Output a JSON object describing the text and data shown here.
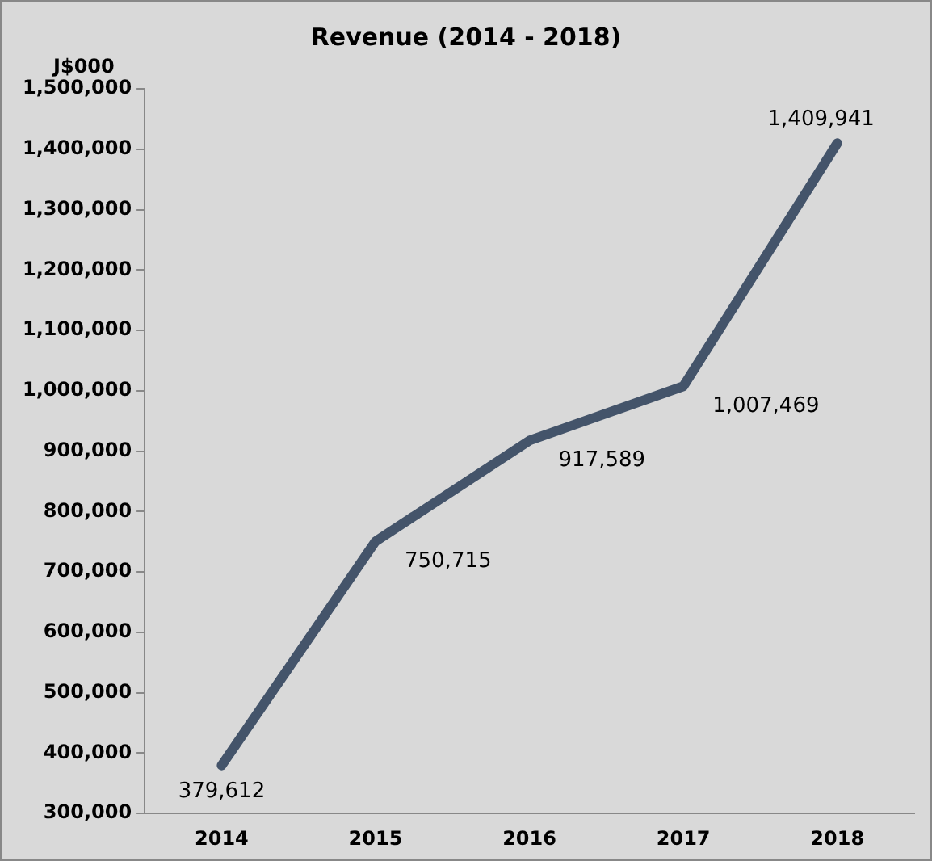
{
  "chart_data": {
    "type": "line",
    "title": "Revenue (2014 - 2018)",
    "ylabel": "J$000",
    "categories": [
      "2014",
      "2015",
      "2016",
      "2017",
      "2018"
    ],
    "series": [
      {
        "color": "#44546a",
        "values": [
          379612,
          750715,
          917589,
          1007469,
          1409941
        ],
        "value_labels": [
          "379,612",
          "750,715",
          "917,589",
          "1,007,469",
          "1,409,941"
        ]
      }
    ],
    "ylim": [
      300000,
      1500000
    ],
    "yticks": [
      {
        "value": 300000,
        "label": "300,000"
      },
      {
        "value": 400000,
        "label": "400,000"
      },
      {
        "value": 500000,
        "label": "500,000"
      },
      {
        "value": 600000,
        "label": "600,000"
      },
      {
        "value": 700000,
        "label": "700,000"
      },
      {
        "value": 800000,
        "label": "800,000"
      },
      {
        "value": 900000,
        "label": "900,000"
      },
      {
        "value": 1000000,
        "label": "1,000,000"
      },
      {
        "value": 1100000,
        "label": "1,100,000"
      },
      {
        "value": 1200000,
        "label": "1,200,000"
      },
      {
        "value": 1300000,
        "label": "1,300,000"
      },
      {
        "value": 1400000,
        "label": "1,400,000"
      },
      {
        "value": 1500000,
        "label": "1,500,000"
      }
    ],
    "grid": false,
    "legend": false,
    "marker": "none",
    "line_style": "solid"
  }
}
